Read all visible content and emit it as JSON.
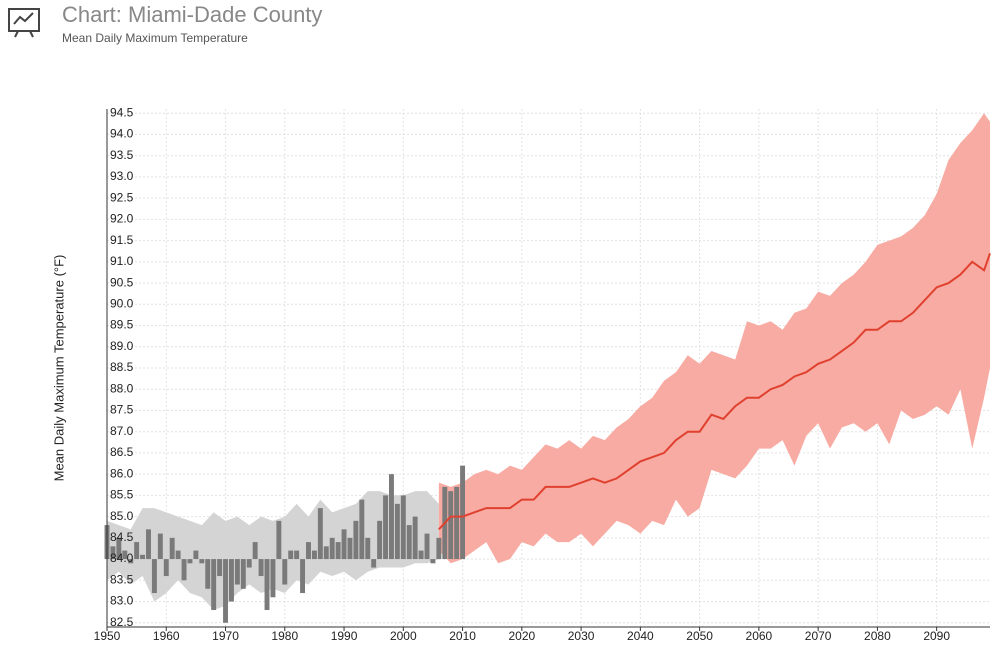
{
  "header": {
    "title": "Chart: Miami-Dade County",
    "subtitle": "Mean Daily Maximum Temperature"
  },
  "chart_data": {
    "type": "combo",
    "y_label": "Mean Daily Maximum Temperature (°F)",
    "xlim": [
      1950,
      2099
    ],
    "ylim": [
      82.4,
      94.6
    ],
    "xticks": [
      1950,
      1960,
      1970,
      1980,
      1990,
      2000,
      2010,
      2020,
      2030,
      2040,
      2050,
      2060,
      2070,
      2080,
      2090
    ],
    "yticks": [
      82.5,
      {
        "value": 83,
        "label": "83.0"
      },
      83.5,
      {
        "value": 84,
        "label": "84.0"
      },
      84.5,
      {
        "value": 85,
        "label": "85.0"
      },
      85.5,
      {
        "value": 86,
        "label": "86.0"
      },
      86.5,
      {
        "value": 87,
        "label": "87.0"
      },
      87.5,
      {
        "value": 88,
        "label": "88.0"
      },
      88.5,
      {
        "value": 89,
        "label": "89.0"
      },
      89.5,
      {
        "value": 90,
        "label": "90.0"
      },
      90.5,
      {
        "value": 91,
        "label": "91.0"
      },
      91.5,
      {
        "value": 92,
        "label": "92.0"
      },
      92.5,
      {
        "value": 93,
        "label": "93.0"
      },
      93.5,
      {
        "value": 94,
        "label": "94.0"
      },
      94.5
    ],
    "grid": true,
    "series": [
      {
        "type": "band",
        "color": "#d4d4d4",
        "x": [
          1950,
          1952,
          1954,
          1956,
          1958,
          1960,
          1962,
          1964,
          1966,
          1968,
          1970,
          1972,
          1974,
          1976,
          1978,
          1980,
          1982,
          1984,
          1986,
          1988,
          1990,
          1992,
          1994,
          1996,
          1998,
          2000,
          2002,
          2004,
          2006
        ],
        "low": [
          83.5,
          83.7,
          83.4,
          83.6,
          83.0,
          83.2,
          83.5,
          83.2,
          83.1,
          82.8,
          82.9,
          83.2,
          83.4,
          83.2,
          83.3,
          83.2,
          83.5,
          83.4,
          83.7,
          83.6,
          83.7,
          83.5,
          83.7,
          83.8,
          83.8,
          83.8,
          83.9,
          83.9,
          84.0
        ],
        "high": [
          84.9,
          84.8,
          84.7,
          85.2,
          85.2,
          85.1,
          85.0,
          84.9,
          84.8,
          85.1,
          84.9,
          85.0,
          84.8,
          85.0,
          84.9,
          85.0,
          85.3,
          85.0,
          85.4,
          85.1,
          85.2,
          85.3,
          85.6,
          85.6,
          85.5,
          85.5,
          85.6,
          85.6,
          85.3
        ]
      },
      {
        "type": "band",
        "color": "#f8aba3",
        "x": [
          2006,
          2008,
          2010,
          2012,
          2014,
          2016,
          2018,
          2020,
          2022,
          2024,
          2026,
          2028,
          2030,
          2032,
          2034,
          2036,
          2038,
          2040,
          2042,
          2044,
          2046,
          2048,
          2050,
          2052,
          2054,
          2056,
          2058,
          2060,
          2062,
          2064,
          2066,
          2068,
          2070,
          2072,
          2074,
          2076,
          2078,
          2080,
          2082,
          2084,
          2086,
          2088,
          2090,
          2092,
          2094,
          2096,
          2098,
          2099
        ],
        "low": [
          84.2,
          83.9,
          84.0,
          84.2,
          84.4,
          83.9,
          84.0,
          84.4,
          84.3,
          84.6,
          84.4,
          84.4,
          84.6,
          84.3,
          84.6,
          84.9,
          84.8,
          84.6,
          84.9,
          84.8,
          85.4,
          85.0,
          85.2,
          86.1,
          86.0,
          85.9,
          86.2,
          86.6,
          86.6,
          86.8,
          86.2,
          86.9,
          87.2,
          86.6,
          87.1,
          87.2,
          87.0,
          87.2,
          86.7,
          87.5,
          87.3,
          87.4,
          87.6,
          87.4,
          88.0,
          86.6,
          87.8,
          88.5
        ],
        "high": [
          85.8,
          85.7,
          85.8,
          86.0,
          86.1,
          86.0,
          86.2,
          86.1,
          86.4,
          86.7,
          86.6,
          86.8,
          86.6,
          86.9,
          86.8,
          87.1,
          87.3,
          87.6,
          87.8,
          88.2,
          88.4,
          88.8,
          88.6,
          88.9,
          88.8,
          88.7,
          89.6,
          89.5,
          89.6,
          89.4,
          89.8,
          89.9,
          90.3,
          90.2,
          90.5,
          90.7,
          91.0,
          91.4,
          91.5,
          91.6,
          91.8,
          92.1,
          92.6,
          93.4,
          93.8,
          94.1,
          94.5,
          94.3
        ]
      },
      {
        "type": "bar",
        "color": "#7a7a7a",
        "base": 84,
        "x": [
          1950,
          1951,
          1952,
          1953,
          1954,
          1955,
          1956,
          1957,
          1958,
          1959,
          1960,
          1961,
          1962,
          1963,
          1964,
          1965,
          1966,
          1967,
          1968,
          1969,
          1970,
          1971,
          1972,
          1973,
          1974,
          1975,
          1976,
          1977,
          1978,
          1979,
          1980,
          1981,
          1982,
          1983,
          1984,
          1985,
          1986,
          1987,
          1988,
          1989,
          1990,
          1991,
          1992,
          1993,
          1994,
          1995,
          1996,
          1997,
          1998,
          1999,
          2000,
          2001,
          2002,
          2003,
          2004,
          2005,
          2006,
          2007,
          2008,
          2009,
          2010
        ],
        "values": [
          84.8,
          84.3,
          84.5,
          84.2,
          83.9,
          84.4,
          84.1,
          84.7,
          83.2,
          84.6,
          83.6,
          84.5,
          84.2,
          83.5,
          83.9,
          84.2,
          83.9,
          83.3,
          82.8,
          83.6,
          82.5,
          83.0,
          83.4,
          83.3,
          83.8,
          84.4,
          83.6,
          82.8,
          83.1,
          84.9,
          83.4,
          84.2,
          84.2,
          83.2,
          84.4,
          84.2,
          85.2,
          84.3,
          84.5,
          84.4,
          84.7,
          84.5,
          84.9,
          85.4,
          84.5,
          83.8,
          84.9,
          85.5,
          86.0,
          85.3,
          85.5,
          84.8,
          85.0,
          84.2,
          84.6,
          83.9,
          84.5,
          85.7,
          85.6,
          85.7,
          86.2
        ]
      },
      {
        "type": "line",
        "color": "#e0412f",
        "x": [
          2006,
          2008,
          2010,
          2012,
          2014,
          2016,
          2018,
          2020,
          2022,
          2024,
          2026,
          2028,
          2030,
          2032,
          2034,
          2036,
          2038,
          2040,
          2042,
          2044,
          2046,
          2048,
          2050,
          2052,
          2054,
          2056,
          2058,
          2060,
          2062,
          2064,
          2066,
          2068,
          2070,
          2072,
          2074,
          2076,
          2078,
          2080,
          2082,
          2084,
          2086,
          2088,
          2090,
          2092,
          2094,
          2096,
          2098,
          2099
        ],
        "values": [
          84.7,
          85.0,
          85.0,
          85.1,
          85.2,
          85.2,
          85.2,
          85.4,
          85.4,
          85.7,
          85.7,
          85.7,
          85.8,
          85.9,
          85.8,
          85.9,
          86.1,
          86.3,
          86.4,
          86.5,
          86.8,
          87.0,
          87.0,
          87.4,
          87.3,
          87.6,
          87.8,
          87.8,
          88.0,
          88.1,
          88.3,
          88.4,
          88.6,
          88.7,
          88.9,
          89.1,
          89.4,
          89.4,
          89.6,
          89.6,
          89.8,
          90.1,
          90.4,
          90.5,
          90.7,
          91.0,
          90.8,
          91.2
        ]
      }
    ]
  }
}
